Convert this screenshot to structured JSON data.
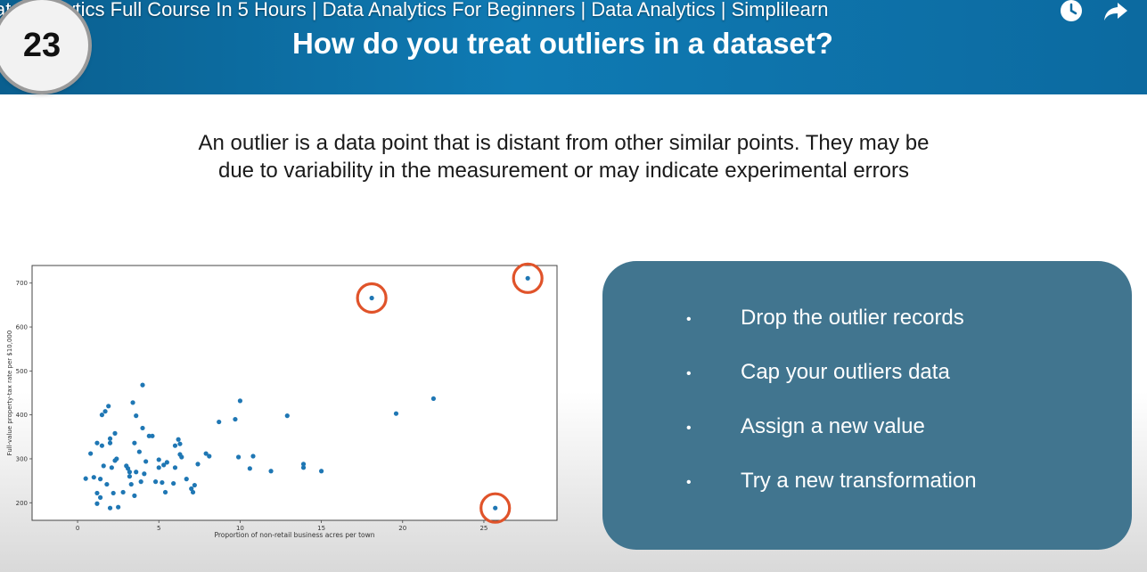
{
  "video": {
    "title": "ata Analytics Full Course In 5 Hours | Data Analytics For Beginners | Data Analytics | Simplilearn"
  },
  "slide": {
    "number": "23",
    "title": "How do you treat outliers in a dataset?",
    "intro_line1": "An outlier is a data point that is distant from other similar points. They may be",
    "intro_line2": "due to variability in the measurement or may indicate experimental errors"
  },
  "icons": {
    "watch_later": "clock-icon",
    "share": "share-arrow-icon"
  },
  "methods": [
    {
      "label": "Drop the outlier records"
    },
    {
      "label": "Cap your outliers data"
    },
    {
      "label": "Assign a new value"
    },
    {
      "label": "Try a new transformation"
    }
  ],
  "colors": {
    "header": "#0f7ab3",
    "panel": "#41758f",
    "points": "#1f77b4",
    "outlier_ring": "#e0532a"
  },
  "chart_data": {
    "type": "scatter",
    "xlabel": "Proportion of non-retail business acres per town",
    "ylabel": "Full-value property-tax rate per $10,000",
    "xlim": [
      -2.8,
      29.5
    ],
    "ylim": [
      160,
      740
    ],
    "xticks": [
      0,
      5,
      10,
      15,
      20,
      25
    ],
    "yticks": [
      200,
      300,
      400,
      500,
      600,
      700
    ],
    "points": [
      [
        0.5,
        255
      ],
      [
        0.8,
        312
      ],
      [
        1.0,
        258
      ],
      [
        1.2,
        222
      ],
      [
        1.2,
        198
      ],
      [
        1.2,
        336
      ],
      [
        1.4,
        254
      ],
      [
        1.4,
        212
      ],
      [
        1.5,
        330
      ],
      [
        1.5,
        400
      ],
      [
        1.6,
        284
      ],
      [
        1.7,
        408
      ],
      [
        1.8,
        242
      ],
      [
        1.9,
        420
      ],
      [
        2.0,
        336
      ],
      [
        2.0,
        346
      ],
      [
        2.0,
        188
      ],
      [
        2.1,
        280
      ],
      [
        2.2,
        222
      ],
      [
        2.3,
        358
      ],
      [
        2.3,
        296
      ],
      [
        2.4,
        300
      ],
      [
        2.5,
        190
      ],
      [
        2.8,
        224
      ],
      [
        3.0,
        284
      ],
      [
        3.1,
        278
      ],
      [
        3.2,
        270
      ],
      [
        3.2,
        260
      ],
      [
        3.3,
        242
      ],
      [
        3.4,
        428
      ],
      [
        3.5,
        216
      ],
      [
        3.5,
        336
      ],
      [
        3.6,
        398
      ],
      [
        3.6,
        270
      ],
      [
        3.8,
        316
      ],
      [
        3.9,
        248
      ],
      [
        4.0,
        370
      ],
      [
        4.1,
        266
      ],
      [
        4.0,
        468
      ],
      [
        4.2,
        294
      ],
      [
        4.4,
        352
      ],
      [
        4.6,
        352
      ],
      [
        4.8,
        248
      ],
      [
        5.0,
        280
      ],
      [
        5.0,
        298
      ],
      [
        5.2,
        246
      ],
      [
        5.3,
        286
      ],
      [
        5.4,
        224
      ],
      [
        5.5,
        292
      ],
      [
        5.9,
        244
      ],
      [
        6.0,
        330
      ],
      [
        6.0,
        280
      ],
      [
        6.2,
        344
      ],
      [
        6.3,
        334
      ],
      [
        6.3,
        310
      ],
      [
        6.4,
        304
      ],
      [
        6.7,
        254
      ],
      [
        7.0,
        232
      ],
      [
        7.1,
        224
      ],
      [
        7.2,
        240
      ],
      [
        7.4,
        288
      ],
      [
        7.9,
        312
      ],
      [
        8.1,
        306
      ],
      [
        8.7,
        384
      ],
      [
        9.7,
        390
      ],
      [
        9.9,
        304
      ],
      [
        10.0,
        432
      ],
      [
        10.6,
        278
      ],
      [
        10.8,
        306
      ],
      [
        11.9,
        272
      ],
      [
        12.9,
        398
      ],
      [
        13.9,
        280
      ],
      [
        13.9,
        288
      ],
      [
        15.0,
        272
      ],
      [
        18.1,
        666
      ],
      [
        19.6,
        403
      ],
      [
        21.9,
        437
      ],
      [
        25.7,
        188
      ],
      [
        27.7,
        711
      ]
    ],
    "outliers": [
      [
        18.1,
        666
      ],
      [
        27.7,
        711
      ],
      [
        25.7,
        188
      ]
    ]
  }
}
